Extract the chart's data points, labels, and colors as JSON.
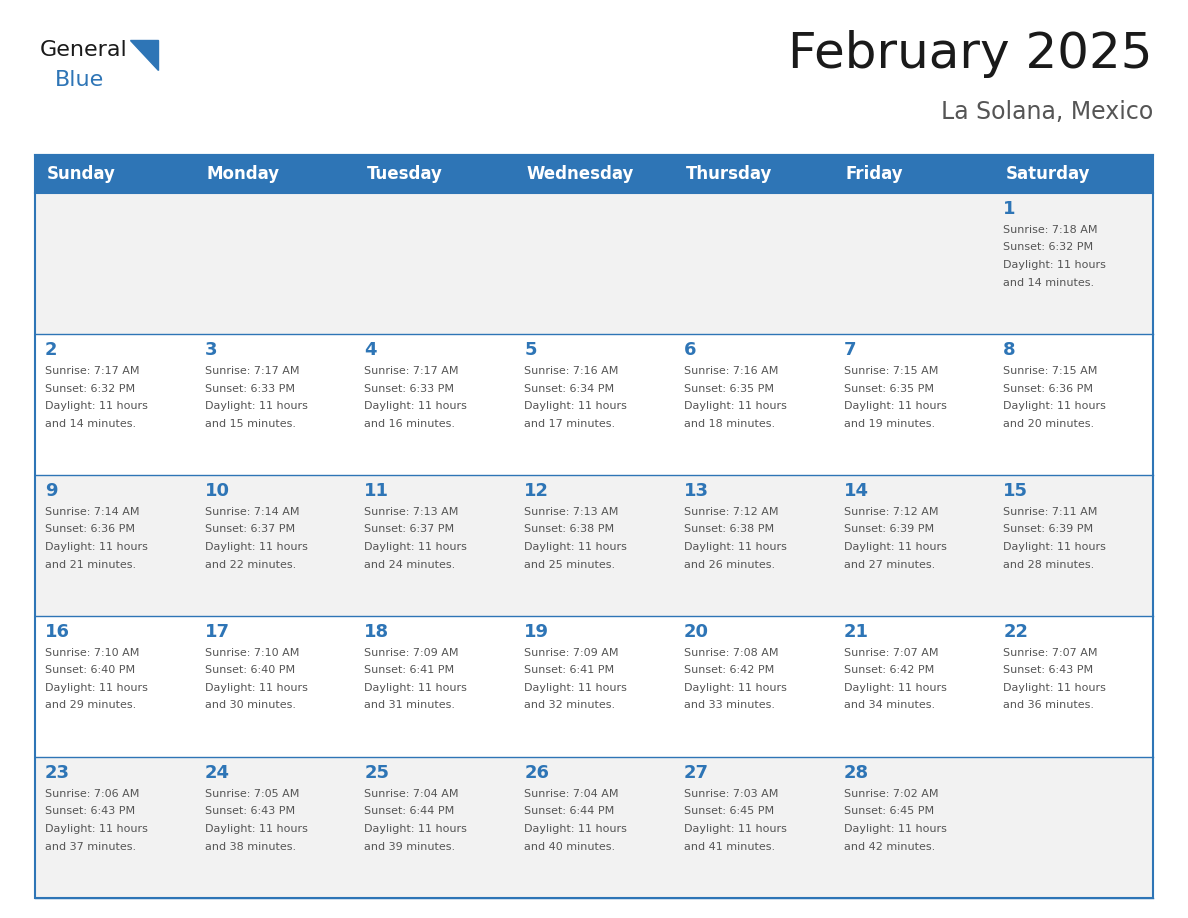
{
  "title": "February 2025",
  "subtitle": "La Solana, Mexico",
  "days_of_week": [
    "Sunday",
    "Monday",
    "Tuesday",
    "Wednesday",
    "Thursday",
    "Friday",
    "Saturday"
  ],
  "header_bg": "#2E75B6",
  "header_text_color": "#FFFFFF",
  "cell_bg_white": "#FFFFFF",
  "cell_bg_gray": "#F2F2F2",
  "border_color": "#2E75B6",
  "day_number_color": "#2E75B6",
  "info_text_color": "#555555",
  "title_color": "#1a1a1a",
  "subtitle_color": "#555555",
  "logo_general_color": "#1a1a1a",
  "logo_blue_color": "#2E75B6",
  "calendar": [
    [
      null,
      null,
      null,
      null,
      null,
      null,
      1
    ],
    [
      2,
      3,
      4,
      5,
      6,
      7,
      8
    ],
    [
      9,
      10,
      11,
      12,
      13,
      14,
      15
    ],
    [
      16,
      17,
      18,
      19,
      20,
      21,
      22
    ],
    [
      23,
      24,
      25,
      26,
      27,
      28,
      null
    ]
  ],
  "row_bg": [
    "#F2F2F2",
    "#FFFFFF",
    "#F2F2F2",
    "#FFFFFF",
    "#F2F2F2"
  ],
  "cell_data": {
    "1": {
      "sunrise": "7:18 AM",
      "sunset": "6:32 PM",
      "daylight_hours": 11,
      "daylight_minutes": 14
    },
    "2": {
      "sunrise": "7:17 AM",
      "sunset": "6:32 PM",
      "daylight_hours": 11,
      "daylight_minutes": 14
    },
    "3": {
      "sunrise": "7:17 AM",
      "sunset": "6:33 PM",
      "daylight_hours": 11,
      "daylight_minutes": 15
    },
    "4": {
      "sunrise": "7:17 AM",
      "sunset": "6:33 PM",
      "daylight_hours": 11,
      "daylight_minutes": 16
    },
    "5": {
      "sunrise": "7:16 AM",
      "sunset": "6:34 PM",
      "daylight_hours": 11,
      "daylight_minutes": 17
    },
    "6": {
      "sunrise": "7:16 AM",
      "sunset": "6:35 PM",
      "daylight_hours": 11,
      "daylight_minutes": 18
    },
    "7": {
      "sunrise": "7:15 AM",
      "sunset": "6:35 PM",
      "daylight_hours": 11,
      "daylight_minutes": 19
    },
    "8": {
      "sunrise": "7:15 AM",
      "sunset": "6:36 PM",
      "daylight_hours": 11,
      "daylight_minutes": 20
    },
    "9": {
      "sunrise": "7:14 AM",
      "sunset": "6:36 PM",
      "daylight_hours": 11,
      "daylight_minutes": 21
    },
    "10": {
      "sunrise": "7:14 AM",
      "sunset": "6:37 PM",
      "daylight_hours": 11,
      "daylight_minutes": 22
    },
    "11": {
      "sunrise": "7:13 AM",
      "sunset": "6:37 PM",
      "daylight_hours": 11,
      "daylight_minutes": 24
    },
    "12": {
      "sunrise": "7:13 AM",
      "sunset": "6:38 PM",
      "daylight_hours": 11,
      "daylight_minutes": 25
    },
    "13": {
      "sunrise": "7:12 AM",
      "sunset": "6:38 PM",
      "daylight_hours": 11,
      "daylight_minutes": 26
    },
    "14": {
      "sunrise": "7:12 AM",
      "sunset": "6:39 PM",
      "daylight_hours": 11,
      "daylight_minutes": 27
    },
    "15": {
      "sunrise": "7:11 AM",
      "sunset": "6:39 PM",
      "daylight_hours": 11,
      "daylight_minutes": 28
    },
    "16": {
      "sunrise": "7:10 AM",
      "sunset": "6:40 PM",
      "daylight_hours": 11,
      "daylight_minutes": 29
    },
    "17": {
      "sunrise": "7:10 AM",
      "sunset": "6:40 PM",
      "daylight_hours": 11,
      "daylight_minutes": 30
    },
    "18": {
      "sunrise": "7:09 AM",
      "sunset": "6:41 PM",
      "daylight_hours": 11,
      "daylight_minutes": 31
    },
    "19": {
      "sunrise": "7:09 AM",
      "sunset": "6:41 PM",
      "daylight_hours": 11,
      "daylight_minutes": 32
    },
    "20": {
      "sunrise": "7:08 AM",
      "sunset": "6:42 PM",
      "daylight_hours": 11,
      "daylight_minutes": 33
    },
    "21": {
      "sunrise": "7:07 AM",
      "sunset": "6:42 PM",
      "daylight_hours": 11,
      "daylight_minutes": 34
    },
    "22": {
      "sunrise": "7:07 AM",
      "sunset": "6:43 PM",
      "daylight_hours": 11,
      "daylight_minutes": 36
    },
    "23": {
      "sunrise": "7:06 AM",
      "sunset": "6:43 PM",
      "daylight_hours": 11,
      "daylight_minutes": 37
    },
    "24": {
      "sunrise": "7:05 AM",
      "sunset": "6:43 PM",
      "daylight_hours": 11,
      "daylight_minutes": 38
    },
    "25": {
      "sunrise": "7:04 AM",
      "sunset": "6:44 PM",
      "daylight_hours": 11,
      "daylight_minutes": 39
    },
    "26": {
      "sunrise": "7:04 AM",
      "sunset": "6:44 PM",
      "daylight_hours": 11,
      "daylight_minutes": 40
    },
    "27": {
      "sunrise": "7:03 AM",
      "sunset": "6:45 PM",
      "daylight_hours": 11,
      "daylight_minutes": 41
    },
    "28": {
      "sunrise": "7:02 AM",
      "sunset": "6:45 PM",
      "daylight_hours": 11,
      "daylight_minutes": 42
    }
  }
}
